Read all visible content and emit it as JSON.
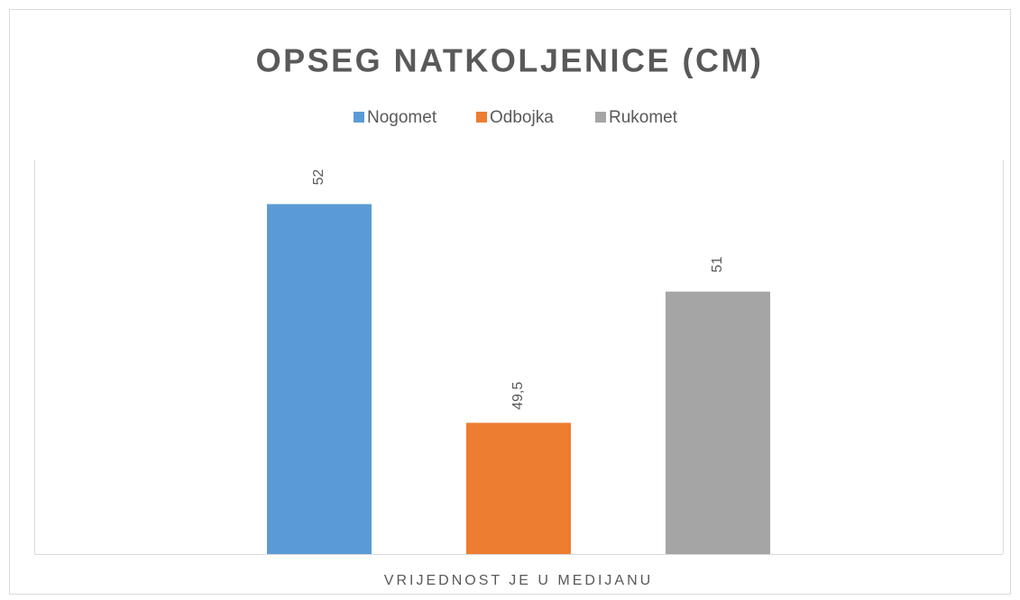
{
  "chart_data": {
    "type": "bar",
    "title": "OPSEG NATKOLJENICE (CM)",
    "categories": [
      "VRIJEDNOST JE U MEDIJANU"
    ],
    "series": [
      {
        "name": "Nogomet",
        "color": "#5b9bd5",
        "values": [
          52
        ],
        "value_labels": [
          "52"
        ]
      },
      {
        "name": "Odbojka",
        "color": "#ed7d31",
        "values": [
          49.5
        ],
        "value_labels": [
          "49,5"
        ]
      },
      {
        "name": "Rukomet",
        "color": "#a5a5a5",
        "values": [
          51
        ],
        "value_labels": [
          "51"
        ]
      }
    ],
    "ylim": [
      48,
      52.5
    ],
    "legend": "top",
    "grid": false
  }
}
